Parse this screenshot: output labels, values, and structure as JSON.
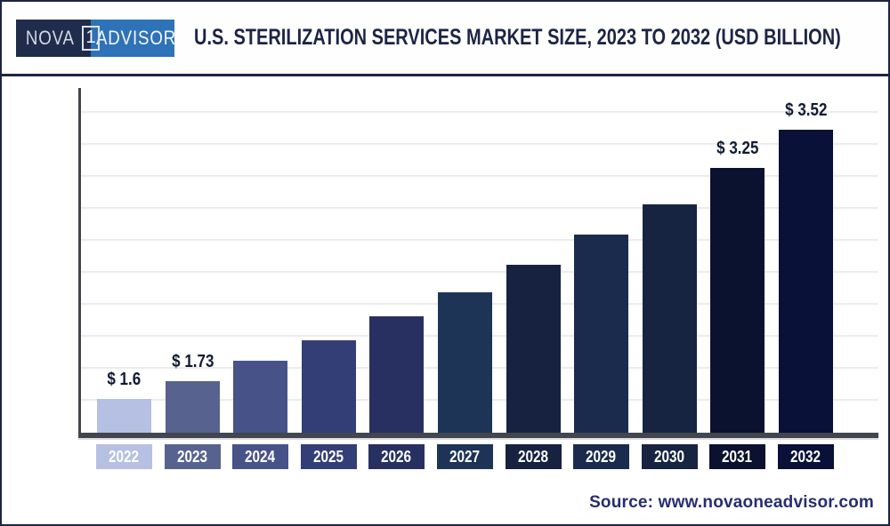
{
  "page": {
    "header": {
      "logo": {
        "nova": "NOVA",
        "one": "1",
        "advisor": "ADVISOR"
      },
      "title": "U.S. STERILIZATION SERVICES MARKET SIZE, 2023 TO 2032 (USD BILLION)"
    },
    "footer": {
      "source": "Source: www.novaoneadvisor.com"
    }
  },
  "chart_data": {
    "type": "bar",
    "title": "U.S. STERILIZATION SERVICES MARKET SIZE, 2023 TO 2032 (USD BILLION)",
    "unit": "USD Billion",
    "categories": [
      "2022",
      "2023",
      "2024",
      "2025",
      "2026",
      "2027",
      "2028",
      "2029",
      "2030",
      "2031",
      "2032"
    ],
    "values": [
      1.6,
      1.73,
      1.87,
      2.02,
      2.19,
      2.36,
      2.56,
      2.77,
      2.99,
      3.25,
      3.52
    ],
    "data_labels": [
      "$ 1.6",
      "$ 1.73",
      null,
      null,
      null,
      null,
      null,
      null,
      null,
      "$ 3.25",
      "$ 3.52"
    ],
    "bar_colors": [
      "#b6c0e2",
      "#57628f",
      "#475289",
      "#343e76",
      "#283061",
      "#1e3456",
      "#162240",
      "#1b2b4d",
      "#172441",
      "#0b1230",
      "#091138"
    ],
    "ylim": [
      1.36,
      3.83
    ],
    "xlabel": "",
    "ylabel": "",
    "grid": true,
    "gridline_count": 10,
    "legend": false
  },
  "colors": {
    "page_border": "#1d2445",
    "logo_navy": "#202c4c",
    "logo_blue": "#2e72b8",
    "title_text": "#1d2445",
    "axis": "#41464f",
    "gridline": "#ebebf1",
    "value_label_text": "#121a32",
    "tick_text": "#ffffff",
    "source_text": "#262e6e"
  }
}
